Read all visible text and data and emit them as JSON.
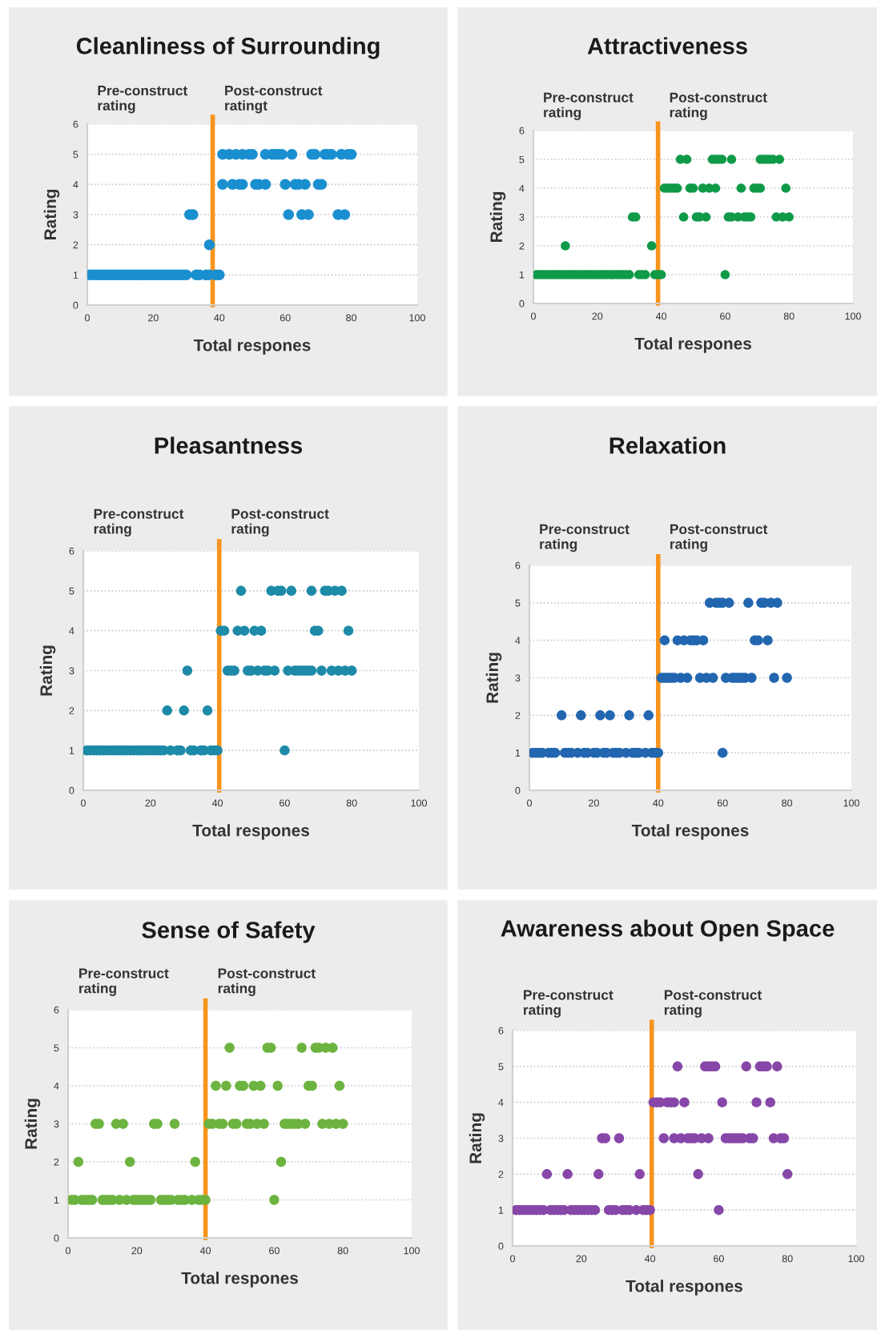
{
  "chart_data": [
    {
      "type": "scatter",
      "title": "Cleanliness of Surrounding",
      "xlabel": "Total respones",
      "ylabel": "Rating",
      "annotations": [
        "Pre-construct\nrating",
        "Post-construct\nratingt"
      ],
      "xlim": [
        0,
        100
      ],
      "xticks": [
        0,
        20,
        40,
        60,
        80,
        100
      ],
      "ylim": [
        0,
        6
      ],
      "yticks": [
        0,
        1,
        2,
        3,
        4,
        5,
        6
      ],
      "grid": "y",
      "marker": "circle",
      "ref_lines": [
        {
          "axis": "x",
          "value": 38,
          "color": "#f7941d"
        }
      ],
      "series": [
        {
          "color": "#1a8fd0",
          "x": [
            1,
            2,
            3,
            4,
            5,
            6,
            7,
            8,
            9,
            10,
            11,
            12,
            13,
            14,
            15,
            16,
            17,
            18,
            19,
            20,
            21,
            22,
            23,
            24,
            25,
            26,
            27,
            28,
            29,
            30,
            33,
            34,
            36,
            37,
            39,
            40,
            37,
            31,
            32,
            61,
            65,
            67,
            76,
            78,
            41,
            44,
            46,
            47,
            51,
            52,
            54,
            60,
            63,
            64,
            66,
            70,
            71,
            41,
            43,
            45,
            47,
            49,
            50,
            54,
            56,
            57,
            58,
            59,
            62,
            68,
            69,
            72,
            73,
            74,
            77,
            79,
            80
          ],
          "values": [
            1,
            1,
            1,
            1,
            1,
            1,
            1,
            1,
            1,
            1,
            1,
            1,
            1,
            1,
            1,
            1,
            1,
            1,
            1,
            1,
            1,
            1,
            1,
            1,
            1,
            1,
            1,
            1,
            1,
            1,
            1,
            1,
            1,
            1,
            1,
            1,
            2,
            3,
            3,
            3,
            3,
            3,
            3,
            3,
            4,
            4,
            4,
            4,
            4,
            4,
            4,
            4,
            4,
            4,
            4,
            4,
            4,
            5,
            5,
            5,
            5,
            5,
            5,
            5,
            5,
            5,
            5,
            5,
            5,
            5,
            5,
            5,
            5,
            5,
            5,
            5,
            5
          ]
        }
      ]
    },
    {
      "type": "scatter",
      "title": "Attractiveness",
      "xlabel": "Total respones",
      "ylabel": "Rating",
      "annotations": [
        "Pre-construct\nrating",
        "Post-construct\nrating"
      ],
      "xlim": [
        0,
        100
      ],
      "xticks": [
        0,
        20,
        40,
        60,
        80,
        100
      ],
      "ylim": [
        0,
        6
      ],
      "yticks": [
        0,
        1,
        2,
        3,
        4,
        5,
        6
      ],
      "grid": "y",
      "marker": "circle",
      "ref_lines": [
        {
          "axis": "x",
          "value": 39,
          "color": "#f7941d"
        }
      ],
      "series": [
        {
          "color": "#0f9a48",
          "x": [
            1,
            2,
            3,
            4,
            5,
            6,
            7,
            8,
            9,
            10,
            11,
            12,
            13,
            14,
            15,
            16,
            17,
            18,
            19,
            20,
            21,
            22,
            23,
            24,
            25,
            26,
            27,
            28,
            29,
            30,
            33,
            34,
            35,
            38,
            39,
            40,
            60,
            10,
            37,
            31,
            32,
            47,
            51,
            52,
            54,
            61,
            62,
            64,
            66,
            67,
            68,
            76,
            78,
            80,
            41,
            42,
            43,
            44,
            45,
            49,
            50,
            53,
            55,
            57,
            65,
            69,
            70,
            71,
            79,
            46,
            48,
            56,
            57,
            58,
            59,
            62,
            71,
            72,
            73,
            74,
            75,
            77
          ],
          "values": [
            1,
            1,
            1,
            1,
            1,
            1,
            1,
            1,
            1,
            1,
            1,
            1,
            1,
            1,
            1,
            1,
            1,
            1,
            1,
            1,
            1,
            1,
            1,
            1,
            1,
            1,
            1,
            1,
            1,
            1,
            1,
            1,
            1,
            1,
            1,
            1,
            1,
            2,
            2,
            3,
            3,
            3,
            3,
            3,
            3,
            3,
            3,
            3,
            3,
            3,
            3,
            3,
            3,
            3,
            4,
            4,
            4,
            4,
            4,
            4,
            4,
            4,
            4,
            4,
            4,
            4,
            4,
            4,
            4,
            5,
            5,
            5,
            5,
            5,
            5,
            5,
            5,
            5,
            5,
            5,
            5,
            5
          ]
        }
      ]
    },
    {
      "type": "scatter",
      "title": "Pleasantness",
      "xlabel": "Total respones",
      "ylabel": "Rating",
      "annotations": [
        "Pre-construct\nrating",
        "Post-construct\nrating"
      ],
      "xlim": [
        0,
        100
      ],
      "xticks": [
        0,
        20,
        40,
        60,
        80,
        100
      ],
      "ylim": [
        0,
        6
      ],
      "yticks": [
        0,
        1,
        2,
        3,
        4,
        5,
        6
      ],
      "grid": "y",
      "marker": "circle",
      "ref_lines": [
        {
          "axis": "x",
          "value": 40.5,
          "color": "#f7941d"
        }
      ],
      "series": [
        {
          "color": "#1d8aa8",
          "x": [
            1,
            2,
            3,
            4,
            5,
            6,
            7,
            8,
            9,
            10,
            11,
            12,
            13,
            14,
            15,
            16,
            17,
            18,
            19,
            20,
            21,
            22,
            23,
            24,
            26,
            28,
            29,
            32,
            33,
            35,
            36,
            38,
            39,
            40,
            60,
            25,
            30,
            37,
            31,
            43,
            44,
            45,
            49,
            50,
            52,
            54,
            55,
            57,
            61,
            63,
            64,
            65,
            66,
            67,
            68,
            71,
            74,
            76,
            78,
            80,
            41,
            42,
            46,
            48,
            51,
            53,
            69,
            70,
            79,
            47,
            56,
            58,
            59,
            62,
            68,
            72,
            73,
            75,
            77
          ],
          "values": [
            1,
            1,
            1,
            1,
            1,
            1,
            1,
            1,
            1,
            1,
            1,
            1,
            1,
            1,
            1,
            1,
            1,
            1,
            1,
            1,
            1,
            1,
            1,
            1,
            1,
            1,
            1,
            1,
            1,
            1,
            1,
            1,
            1,
            1,
            1,
            2,
            2,
            2,
            3,
            3,
            3,
            3,
            3,
            3,
            3,
            3,
            3,
            3,
            3,
            3,
            3,
            3,
            3,
            3,
            3,
            3,
            3,
            3,
            3,
            3,
            4,
            4,
            4,
            4,
            4,
            4,
            4,
            4,
            4,
            5,
            5,
            5,
            5,
            5,
            5,
            5,
            5,
            5,
            5
          ]
        }
      ]
    },
    {
      "type": "scatter",
      "title": "Relaxation",
      "xlabel": "Total respones",
      "ylabel": "Rating",
      "annotations": [
        "Pre-construct\nrating",
        "Post-construct\nrating"
      ],
      "xlim": [
        0,
        100
      ],
      "xticks": [
        0,
        20,
        40,
        60,
        80,
        100
      ],
      "ylim": [
        0,
        6
      ],
      "yticks": [
        0,
        1,
        2,
        3,
        4,
        5,
        6
      ],
      "grid": "y",
      "marker": "circle",
      "ref_lines": [
        {
          "axis": "x",
          "value": 40,
          "color": "#f7941d"
        }
      ],
      "series": [
        {
          "color": "#2266b0",
          "x": [
            1,
            2,
            3,
            4,
            6,
            7,
            8,
            11,
            12,
            13,
            15,
            17,
            18,
            20,
            21,
            23,
            24,
            26,
            27,
            28,
            30,
            32,
            33,
            34,
            36,
            38,
            39,
            40,
            60,
            10,
            16,
            22,
            25,
            31,
            37,
            41,
            42,
            43,
            44,
            45,
            47,
            49,
            53,
            55,
            57,
            61,
            63,
            64,
            65,
            66,
            67,
            69,
            76,
            80,
            42,
            46,
            48,
            50,
            51,
            52,
            54,
            70,
            71,
            74,
            56,
            58,
            59,
            60,
            62,
            68,
            72,
            73,
            75,
            77
          ],
          "values": [
            1,
            1,
            1,
            1,
            1,
            1,
            1,
            1,
            1,
            1,
            1,
            1,
            1,
            1,
            1,
            1,
            1,
            1,
            1,
            1,
            1,
            1,
            1,
            1,
            1,
            1,
            1,
            1,
            1,
            2,
            2,
            2,
            2,
            2,
            2,
            3,
            3,
            3,
            3,
            3,
            3,
            3,
            3,
            3,
            3,
            3,
            3,
            3,
            3,
            3,
            3,
            3,
            3,
            3,
            4,
            4,
            4,
            4,
            4,
            4,
            4,
            4,
            4,
            4,
            5,
            5,
            5,
            5,
            5,
            5,
            5,
            5,
            5,
            5
          ]
        }
      ]
    },
    {
      "type": "scatter",
      "title": "Sense of Safety",
      "xlabel": "Total respones",
      "ylabel": "Rating",
      "annotations": [
        "Pre-construct\nrating",
        "Post-construct\nrating"
      ],
      "xlim": [
        0,
        100
      ],
      "xticks": [
        0,
        20,
        40,
        60,
        80,
        100
      ],
      "ylim": [
        0,
        6
      ],
      "yticks": [
        0,
        1,
        2,
        3,
        4,
        5,
        6
      ],
      "grid": "y",
      "marker": "circle",
      "ref_lines": [
        {
          "axis": "x",
          "value": 40,
          "color": "#f7941d"
        }
      ],
      "series": [
        {
          "color": "#6db33f",
          "x": [
            1,
            2,
            4,
            5,
            6,
            7,
            10,
            11,
            12,
            13,
            15,
            17,
            19,
            20,
            21,
            22,
            23,
            24,
            27,
            28,
            29,
            30,
            32,
            33,
            34,
            36,
            38,
            39,
            40,
            60,
            3,
            18,
            37,
            62,
            8,
            9,
            14,
            16,
            25,
            26,
            31,
            41,
            42,
            44,
            45,
            48,
            49,
            52,
            53,
            55,
            57,
            63,
            64,
            65,
            66,
            67,
            69,
            74,
            76,
            78,
            80,
            43,
            46,
            50,
            51,
            54,
            56,
            61,
            70,
            71,
            79,
            47,
            58,
            59,
            68,
            72,
            73,
            75,
            77
          ],
          "values": [
            1,
            1,
            1,
            1,
            1,
            1,
            1,
            1,
            1,
            1,
            1,
            1,
            1,
            1,
            1,
            1,
            1,
            1,
            1,
            1,
            1,
            1,
            1,
            1,
            1,
            1,
            1,
            1,
            1,
            1,
            2,
            2,
            2,
            2,
            3,
            3,
            3,
            3,
            3,
            3,
            3,
            3,
            3,
            3,
            3,
            3,
            3,
            3,
            3,
            3,
            3,
            3,
            3,
            3,
            3,
            3,
            3,
            3,
            3,
            3,
            3,
            4,
            4,
            4,
            4,
            4,
            4,
            4,
            4,
            4,
            4,
            5,
            5,
            5,
            5,
            5,
            5,
            5,
            5
          ]
        }
      ]
    },
    {
      "type": "scatter",
      "title": "Awareness about Open Space",
      "xlabel": "Total respones",
      "ylabel": "Rating",
      "annotations": [
        "Pre-construct\nrating",
        "Post-construct\nrating"
      ],
      "xlim": [
        0,
        100
      ],
      "xticks": [
        0,
        20,
        40,
        60,
        80,
        100
      ],
      "ylim": [
        0,
        6
      ],
      "yticks": [
        0,
        1,
        2,
        3,
        4,
        5,
        6
      ],
      "grid": "y",
      "marker": "circle",
      "ref_lines": [
        {
          "axis": "x",
          "value": 40.5,
          "color": "#f7941d"
        }
      ],
      "series": [
        {
          "color": "#8747a8",
          "x": [
            1,
            2,
            3,
            4,
            5,
            6,
            7,
            8,
            9,
            11,
            12,
            13,
            14,
            15,
            17,
            18,
            19,
            20,
            21,
            22,
            23,
            24,
            28,
            29,
            30,
            32,
            33,
            34,
            36,
            38,
            39,
            40,
            60,
            10,
            16,
            25,
            37,
            54,
            80,
            26,
            27,
            31,
            44,
            47,
            49,
            51,
            52,
            53,
            55,
            57,
            62,
            63,
            64,
            65,
            66,
            67,
            69,
            70,
            76,
            78,
            79,
            41,
            42,
            43,
            45,
            46,
            47,
            50,
            61,
            71,
            75,
            48,
            56,
            57,
            58,
            59,
            68,
            72,
            73,
            74,
            77
          ],
          "values": [
            1,
            1,
            1,
            1,
            1,
            1,
            1,
            1,
            1,
            1,
            1,
            1,
            1,
            1,
            1,
            1,
            1,
            1,
            1,
            1,
            1,
            1,
            1,
            1,
            1,
            1,
            1,
            1,
            1,
            1,
            1,
            1,
            1,
            2,
            2,
            2,
            2,
            2,
            2,
            3,
            3,
            3,
            3,
            3,
            3,
            3,
            3,
            3,
            3,
            3,
            3,
            3,
            3,
            3,
            3,
            3,
            3,
            3,
            3,
            3,
            3,
            4,
            4,
            4,
            4,
            4,
            4,
            4,
            4,
            4,
            4,
            5,
            5,
            5,
            5,
            5,
            5,
            5,
            5,
            5,
            5
          ]
        }
      ]
    }
  ]
}
